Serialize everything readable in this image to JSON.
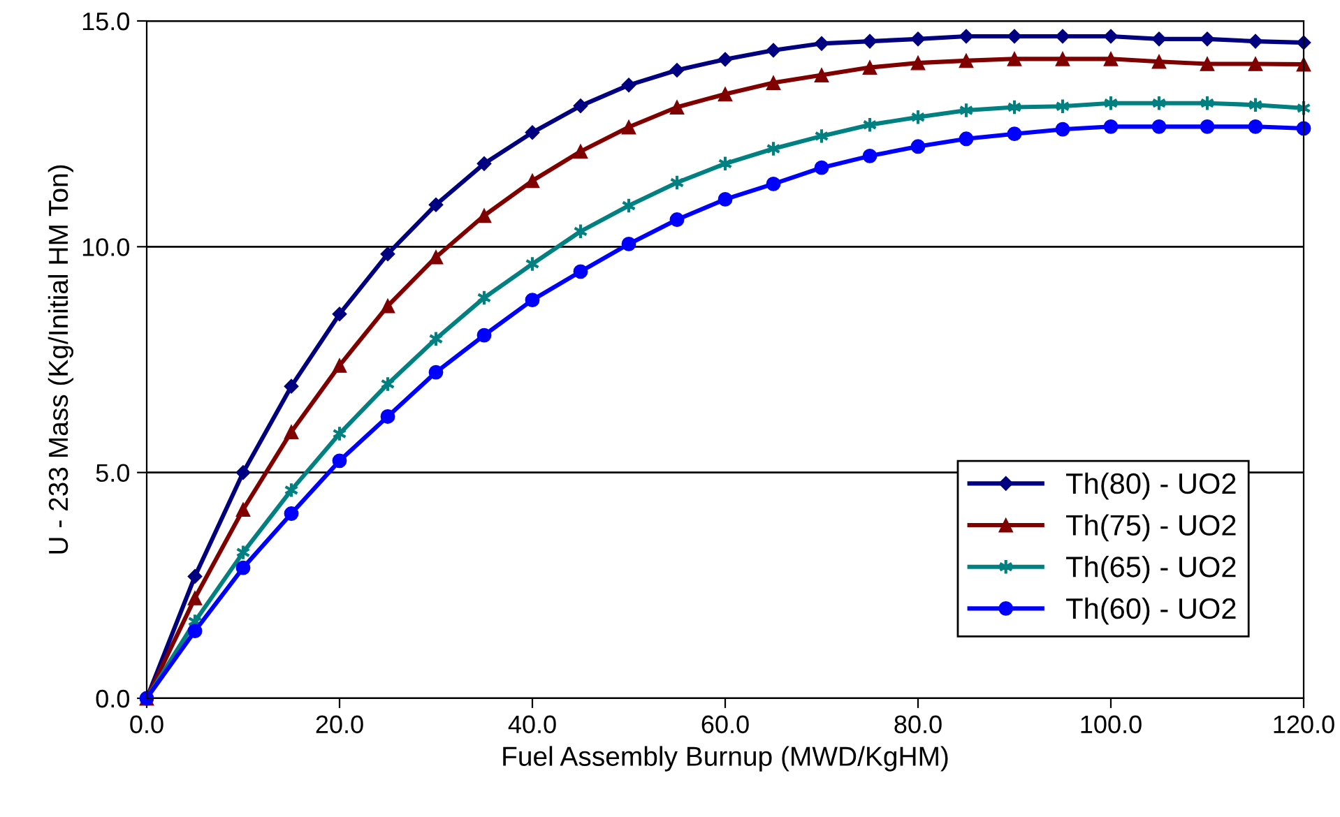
{
  "chart_data": {
    "type": "line",
    "xlabel": "Fuel Assembly Burnup (MWD/KgHM)",
    "ylabel": "U - 233 Mass (Kg/Initial HM Ton)",
    "x": [
      0,
      5,
      10,
      15,
      20,
      25,
      30,
      35,
      40,
      45,
      50,
      55,
      60,
      65,
      70,
      75,
      80,
      85,
      90,
      95,
      100,
      105,
      110,
      115,
      120
    ],
    "series": [
      {
        "name": "Th(80) - UO2",
        "color": "#000080",
        "marker": "diamond",
        "values": [
          0,
          2.7,
          5.0,
          6.91,
          8.51,
          9.84,
          10.93,
          11.84,
          12.53,
          13.12,
          13.58,
          13.91,
          14.15,
          14.35,
          14.5,
          14.55,
          14.6,
          14.66,
          14.66,
          14.66,
          14.66,
          14.6,
          14.6,
          14.55,
          14.52
        ]
      },
      {
        "name": "Th(75) - UO2",
        "color": "#800000",
        "marker": "triangle",
        "values": [
          0,
          2.22,
          4.18,
          5.9,
          7.37,
          8.69,
          9.77,
          10.69,
          11.46,
          12.11,
          12.65,
          13.09,
          13.38,
          13.63,
          13.8,
          13.97,
          14.07,
          14.12,
          14.16,
          14.16,
          14.16,
          14.1,
          14.05,
          14.05,
          14.04
        ]
      },
      {
        "name": "Th(65) - UO2",
        "color": "#008080",
        "marker": "cross",
        "values": [
          0,
          1.7,
          3.23,
          4.61,
          5.86,
          6.96,
          7.96,
          8.87,
          9.62,
          10.34,
          10.91,
          11.42,
          11.84,
          12.17,
          12.45,
          12.7,
          12.87,
          13.02,
          13.09,
          13.11,
          13.18,
          13.18,
          13.18,
          13.14,
          13.07
        ]
      },
      {
        "name": "Th(60) - UO2",
        "color": "#0000ff",
        "marker": "circle",
        "values": [
          0,
          1.49,
          2.89,
          4.09,
          5.26,
          6.24,
          7.22,
          8.04,
          8.82,
          9.45,
          10.06,
          10.6,
          11.05,
          11.39,
          11.75,
          12.01,
          12.22,
          12.39,
          12.5,
          12.6,
          12.66,
          12.66,
          12.66,
          12.66,
          12.62
        ]
      }
    ],
    "xlim": [
      0,
      120
    ],
    "ylim": [
      0,
      15
    ],
    "xticks": [
      {
        "value": 0,
        "label": "0.0"
      },
      {
        "value": 20,
        "label": "20.0"
      },
      {
        "value": 40,
        "label": "40.0"
      },
      {
        "value": 60,
        "label": "60.0"
      },
      {
        "value": 80,
        "label": "80.0"
      },
      {
        "value": 100,
        "label": "100.0"
      },
      {
        "value": 120,
        "label": "120.0"
      }
    ],
    "yticks": [
      {
        "value": 0,
        "label": "0.0"
      },
      {
        "value": 5,
        "label": "5.0"
      },
      {
        "value": 10,
        "label": "10.0"
      },
      {
        "value": 15,
        "label": "15.0"
      }
    ],
    "grid": "y",
    "legend": "bottom right",
    "line_style": "solid"
  }
}
